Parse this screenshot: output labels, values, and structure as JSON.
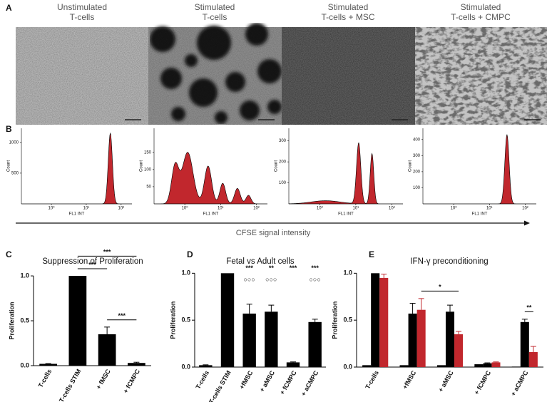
{
  "panel_labels": [
    "A",
    "B",
    "C",
    "D",
    "E"
  ],
  "panel_a": {
    "titles": [
      [
        "Unstimulated",
        "T-cells"
      ],
      [
        "Stimulated",
        "T-cells"
      ],
      [
        "Stimulated",
        "T-cells + MSC"
      ],
      [
        "Stimulated",
        "T-cells + CMPC"
      ]
    ]
  },
  "panel_b": {
    "axis_label": "CFSE signal intensity",
    "plots": [
      {
        "type": "density",
        "xlabel": "FL1 INT",
        "ylabel": "Count",
        "log_x": true,
        "color": "#c1272d",
        "xlim": [
          -0.86,
          2.31
        ],
        "xticks": [
          {
            "value": 0,
            "label": "10⁰"
          },
          {
            "value": 1,
            "label": "10¹"
          },
          {
            "value": 2,
            "label": "10²"
          }
        ],
        "ylim": [
          0,
          1230
        ],
        "yticks": [
          500,
          1000
        ],
        "components": [
          {
            "center": 1.69,
            "count": 1150,
            "spread": 0.06
          }
        ]
      },
      {
        "type": "density",
        "xlabel": "FL1 INT",
        "ylabel": "Count",
        "log_x": true,
        "color": "#c1272d",
        "xlim": [
          -0.86,
          2.31
        ],
        "xticks": [
          {
            "value": 0,
            "label": "10⁰"
          },
          {
            "value": 1,
            "label": "10¹"
          },
          {
            "value": 2,
            "label": "10²"
          }
        ],
        "ylim": [
          0,
          220
        ],
        "yticks": [
          50,
          100,
          150
        ],
        "components": [
          {
            "center": -0.27,
            "count": 110,
            "spread": 0.1
          },
          {
            "center": 0.08,
            "count": 150,
            "spread": 0.15
          },
          {
            "center": 0.65,
            "count": 110,
            "spread": 0.1
          },
          {
            "center": 1.06,
            "count": 60,
            "spread": 0.08
          },
          {
            "center": 1.47,
            "count": 45,
            "spread": 0.08
          },
          {
            "center": 1.78,
            "count": 25,
            "spread": 0.07
          }
        ]
      },
      {
        "type": "density",
        "xlabel": "FL1 INT",
        "ylabel": "Count",
        "log_x": true,
        "color": "#c1272d",
        "xlim": [
          -0.86,
          2.31
        ],
        "xticks": [
          {
            "value": 0,
            "label": "10⁰"
          },
          {
            "value": 1,
            "label": "10¹"
          },
          {
            "value": 2,
            "label": "10²"
          }
        ],
        "ylim": [
          0,
          360
        ],
        "yticks": [
          100,
          200,
          300
        ],
        "components": [
          {
            "center": 0.16,
            "count": 15,
            "spread": 0.4
          },
          {
            "center": 1.08,
            "count": 290,
            "spread": 0.06
          },
          {
            "center": 1.45,
            "count": 240,
            "spread": 0.05
          }
        ]
      },
      {
        "type": "density",
        "xlabel": "FL1 INT",
        "ylabel": "Count",
        "log_x": true,
        "color": "#c1272d",
        "xlim": [
          -0.86,
          2.31
        ],
        "xticks": [
          {
            "value": 0,
            "label": "10⁰"
          },
          {
            "value": 1,
            "label": "10¹"
          },
          {
            "value": 2,
            "label": "10²"
          }
        ],
        "ylim": [
          0,
          470
        ],
        "yticks": [
          100,
          200,
          300,
          400
        ],
        "components": [
          {
            "center": 1.49,
            "count": 430,
            "spread": 0.06
          }
        ]
      }
    ]
  },
  "chart_data": [
    {
      "type": "bar",
      "title": "Suppression of Proliferation",
      "ylabel": "Proliferation",
      "categories": [
        "T-cells",
        "T-cells STIM",
        "+ fMSC",
        "+ fCMPC"
      ],
      "values": [
        0.02,
        1.0,
        0.35,
        0.03
      ],
      "errors": [
        0.003,
        0,
        0.08,
        0.008
      ],
      "color": "#000000",
      "ylim": [
        0,
        1.35
      ],
      "yticks": [
        {
          "value": 0,
          "label": "0.0"
        },
        {
          "value": 0.5,
          "label": "0.5"
        },
        {
          "value": 1,
          "label": "1.0"
        }
      ],
      "significance": [
        {
          "from": 1,
          "to": 2,
          "label": "***"
        },
        {
          "from": 2,
          "to": 3,
          "label": "***"
        },
        {
          "from": 1,
          "to": 3,
          "label": "***"
        }
      ]
    },
    {
      "type": "bar",
      "title": "Fetal vs Adult cells",
      "ylabel": "Proliferation",
      "categories": [
        "T-cells",
        "T-cells STIM",
        "+fMSC",
        "+ aMSC",
        "+ fCMPC",
        "+ aCMPC"
      ],
      "values": [
        0.02,
        1.0,
        0.57,
        0.59,
        0.05,
        0.48
      ],
      "errors": [
        0.004,
        0,
        0.1,
        0.07,
        0.005,
        0.03
      ],
      "color": "#000000",
      "ylim": [
        0,
        1.2
      ],
      "yticks": [
        {
          "value": 0,
          "label": "0.0"
        },
        {
          "value": 0.5,
          "label": "0.5"
        },
        {
          "value": 1,
          "label": "1.0"
        }
      ],
      "markers": [
        [
          null,
          null,
          "***",
          "**",
          "***",
          "***"
        ],
        [
          null,
          null,
          "○○○",
          "○○○",
          null,
          "○○○"
        ]
      ]
    },
    {
      "type": "grouped_bar",
      "title": "IFN-γ preconditioning",
      "ylabel": "Proliferation",
      "categories": [
        "T-cells",
        "+fMSC",
        "+ aMSC",
        "+ fCMPC",
        "+ aCMPC"
      ],
      "series": [
        {
          "color": "#000000",
          "values": [
            0.02,
            0.02,
            0.02,
            0.03,
            0.005
          ]
        },
        {
          "color": "#000000",
          "values": [
            1.0,
            0.57,
            0.59,
            0.04,
            0.48
          ],
          "errors": [
            0,
            0.11,
            0.07,
            0.005,
            0.03
          ]
        },
        {
          "color": "#c1272d",
          "values": [
            0.95,
            0.61,
            0.35,
            0.05,
            0.16
          ],
          "errors": [
            0.04,
            0.12,
            0.03,
            0.005,
            0.06
          ]
        }
      ],
      "ylim": [
        0,
        1.2
      ],
      "yticks": [
        {
          "value": 0,
          "label": "0.0"
        },
        {
          "value": 0.5,
          "label": "0.5"
        },
        {
          "value": 1,
          "label": "1.0"
        }
      ],
      "significance": [
        {
          "from": [
            1,
            2
          ],
          "to": [
            2,
            2
          ],
          "label": "*"
        },
        {
          "from": [
            4,
            1
          ],
          "to": [
            4,
            2
          ],
          "label": "**"
        }
      ]
    }
  ]
}
